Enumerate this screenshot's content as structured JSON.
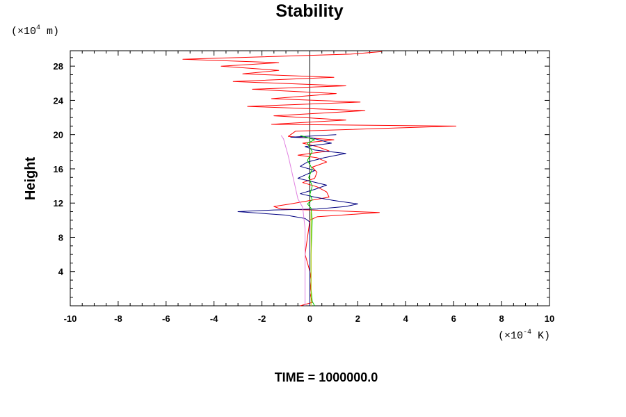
{
  "chart_data": {
    "type": "line",
    "title": "Stability",
    "xlabel": "",
    "ylabel": "Height",
    "x_unit": {
      "prefix": "(×10",
      "exp": "-4",
      "suffix": " K)"
    },
    "y_unit": {
      "prefix": "(×10",
      "exp": "4",
      "suffix": " m)"
    },
    "xlim": [
      -10,
      10
    ],
    "ylim": [
      0,
      29.8
    ],
    "x_major_ticks": [
      -10,
      -8,
      -6,
      -4,
      -2,
      0,
      2,
      4,
      6,
      8,
      10
    ],
    "x_tick_labels": [
      "-10",
      "-8",
      "-6",
      "-4",
      "-2",
      "0",
      "2",
      "4",
      "6",
      "8",
      "10"
    ],
    "y_major_ticks": [
      4,
      8,
      12,
      16,
      20,
      24,
      28
    ],
    "y_tick_labels": [
      "4",
      "8",
      "12",
      "16",
      "20",
      "24",
      "28"
    ],
    "minor_tick_step": {
      "x": 0.5,
      "y": 1
    },
    "grid": false,
    "series": [
      {
        "color": "#ff0000",
        "points": [
          [
            -0.4,
            0
          ],
          [
            0.1,
            0.4
          ],
          [
            0,
            1.5
          ],
          [
            0.05,
            3
          ],
          [
            0,
            4
          ],
          [
            -0.1,
            5
          ],
          [
            -0.2,
            6
          ],
          [
            -0.15,
            7
          ],
          [
            -0.1,
            8
          ],
          [
            -0.05,
            9
          ],
          [
            0,
            10
          ],
          [
            0.3,
            10.4
          ],
          [
            2.9,
            10.9
          ],
          [
            1,
            11.1
          ],
          [
            -1.2,
            11.3
          ],
          [
            -1.5,
            11.6
          ],
          [
            -0.8,
            11.9
          ],
          [
            -0.2,
            12.2
          ],
          [
            0.8,
            12.7
          ],
          [
            0.7,
            13.3
          ],
          [
            0.3,
            13.9
          ],
          [
            -0.3,
            14.4
          ],
          [
            0.2,
            14.9
          ],
          [
            0.3,
            15.6
          ],
          [
            0.1,
            16.2
          ],
          [
            0.7,
            16.8
          ],
          [
            0.3,
            17.3
          ],
          [
            -0.5,
            17.6
          ],
          [
            0.8,
            18.1
          ],
          [
            0.3,
            18.6
          ],
          [
            -0.3,
            19.0
          ],
          [
            1.0,
            19.4
          ],
          [
            -0.9,
            19.8
          ],
          [
            -0.6,
            20.4
          ],
          [
            6.1,
            21.0
          ],
          [
            -1.6,
            21.2
          ],
          [
            1.5,
            21.7
          ],
          [
            -1.5,
            22.2
          ],
          [
            2.3,
            22.8
          ],
          [
            -2.6,
            23.3
          ],
          [
            2.1,
            23.8
          ],
          [
            -1.6,
            24.2
          ],
          [
            1.1,
            24.8
          ],
          [
            -2.4,
            25.3
          ],
          [
            1.5,
            25.7
          ],
          [
            -3.2,
            26.2
          ],
          [
            1.0,
            26.7
          ],
          [
            -2.8,
            27.1
          ],
          [
            -1.3,
            27.5
          ],
          [
            -3.7,
            28.0
          ],
          [
            -1.3,
            28.4
          ],
          [
            -5.3,
            28.8
          ],
          [
            1.7,
            29.4
          ],
          [
            3.0,
            29.7
          ]
        ]
      },
      {
        "color": "#000080",
        "points": [
          [
            0,
            0
          ],
          [
            0,
            9.8
          ],
          [
            -0.2,
            10.2
          ],
          [
            -1.0,
            10.6
          ],
          [
            -3.0,
            11.0
          ],
          [
            -1.5,
            11.2
          ],
          [
            0.3,
            11.3
          ],
          [
            1.5,
            11.6
          ],
          [
            2.0,
            11.9
          ],
          [
            1.0,
            12.3
          ],
          [
            0.2,
            12.7
          ],
          [
            -0.4,
            13.1
          ],
          [
            0.2,
            13.6
          ],
          [
            0.7,
            14.1
          ],
          [
            0.1,
            14.5
          ],
          [
            -0.5,
            14.9
          ],
          [
            -0.1,
            15.4
          ],
          [
            0.2,
            15.8
          ],
          [
            -0.4,
            16.3
          ],
          [
            -0.1,
            16.8
          ],
          [
            0.6,
            17.3
          ],
          [
            1.5,
            17.8
          ],
          [
            0.2,
            18.2
          ],
          [
            -0.2,
            18.6
          ],
          [
            0.9,
            19.0
          ],
          [
            0.1,
            19.6
          ],
          [
            -0.8,
            19.7
          ],
          [
            1.1,
            20.0
          ]
        ]
      },
      {
        "color": "#00cc00",
        "points": [
          [
            0.2,
            0
          ],
          [
            0.1,
            0.5
          ],
          [
            0.05,
            2
          ],
          [
            0.05,
            6
          ],
          [
            0.1,
            10
          ],
          [
            0.05,
            11.4
          ],
          [
            -0.1,
            11.9
          ],
          [
            0.1,
            12.4
          ],
          [
            0,
            13
          ],
          [
            0.1,
            14
          ],
          [
            -0.05,
            15
          ],
          [
            0.1,
            16
          ],
          [
            -0.1,
            17
          ],
          [
            0.1,
            18
          ],
          [
            -0.1,
            19
          ],
          [
            0.2,
            19.4
          ],
          [
            -0.4,
            19.9
          ]
        ]
      },
      {
        "color": "#e080e0",
        "points": [
          [
            -0.2,
            0
          ],
          [
            -0.2,
            9
          ],
          [
            -0.3,
            11.5
          ],
          [
            -0.5,
            12.5
          ],
          [
            -0.7,
            15
          ],
          [
            -0.9,
            17.5
          ],
          [
            -1.1,
            19.5
          ],
          [
            -1.2,
            19.9
          ]
        ]
      },
      {
        "color": "#c8c800",
        "points": [
          [
            0.05,
            0
          ],
          [
            0.05,
            10
          ],
          [
            0.05,
            11
          ]
        ]
      }
    ]
  },
  "footer": {
    "time_label": "TIME = 1000000.0"
  }
}
